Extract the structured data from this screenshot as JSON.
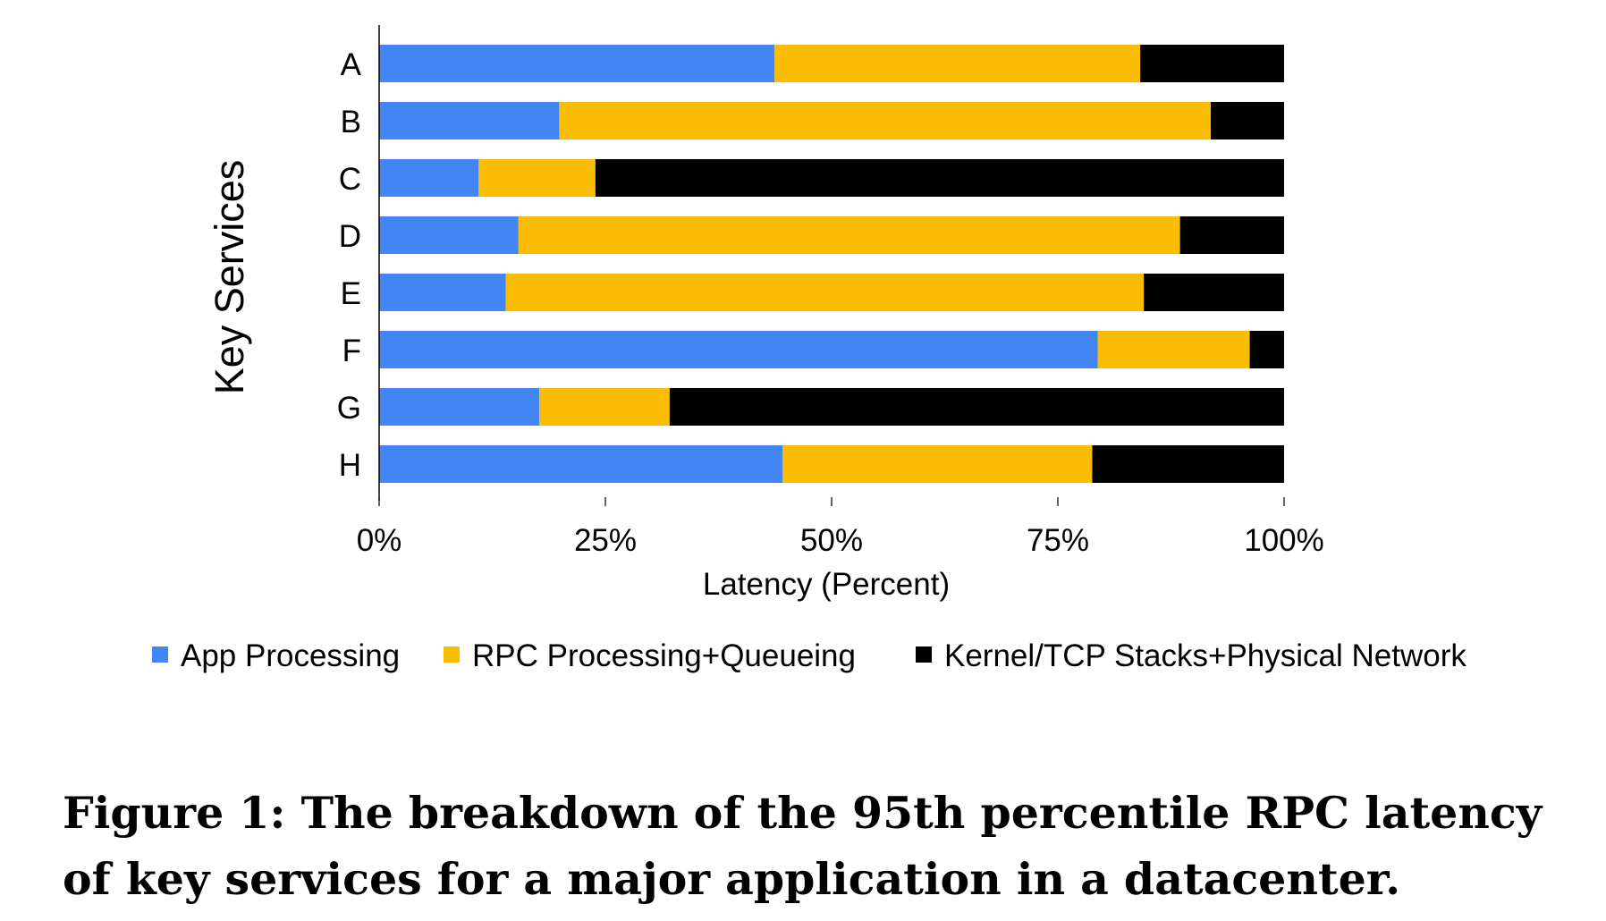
{
  "chart_data": {
    "type": "bar",
    "orientation": "horizontal",
    "stacked": true,
    "categories": [
      "A",
      "B",
      "C",
      "D",
      "E",
      "F",
      "G",
      "H"
    ],
    "series": [
      {
        "name": "App Processing",
        "color": "#4285F4",
        "values": [
          43.7,
          19.9,
          11.0,
          15.4,
          14.0,
          79.4,
          17.7,
          44.6
        ]
      },
      {
        "name": "RPC Processing+Queueing",
        "color": "#FBBC04",
        "values": [
          40.4,
          72.0,
          12.9,
          73.1,
          70.5,
          16.8,
          14.4,
          34.2
        ]
      },
      {
        "name": "Kernel/TCP Stacks+Physical Network",
        "color": "#000000",
        "values": [
          15.9,
          8.1,
          76.1,
          11.5,
          15.5,
          3.8,
          67.9,
          21.2
        ]
      }
    ],
    "x_ticks": [
      "0%",
      "25%",
      "50%",
      "75%",
      "100%"
    ],
    "xlim": [
      0,
      100
    ],
    "xlabel": "Latency (Percent)",
    "ylabel": "Key Services",
    "title": "",
    "grid": false,
    "legend_position": "bottom"
  },
  "caption": "Figure 1: The breakdown of the 95th percentile RPC latency of key services for a major application in a datacenter."
}
